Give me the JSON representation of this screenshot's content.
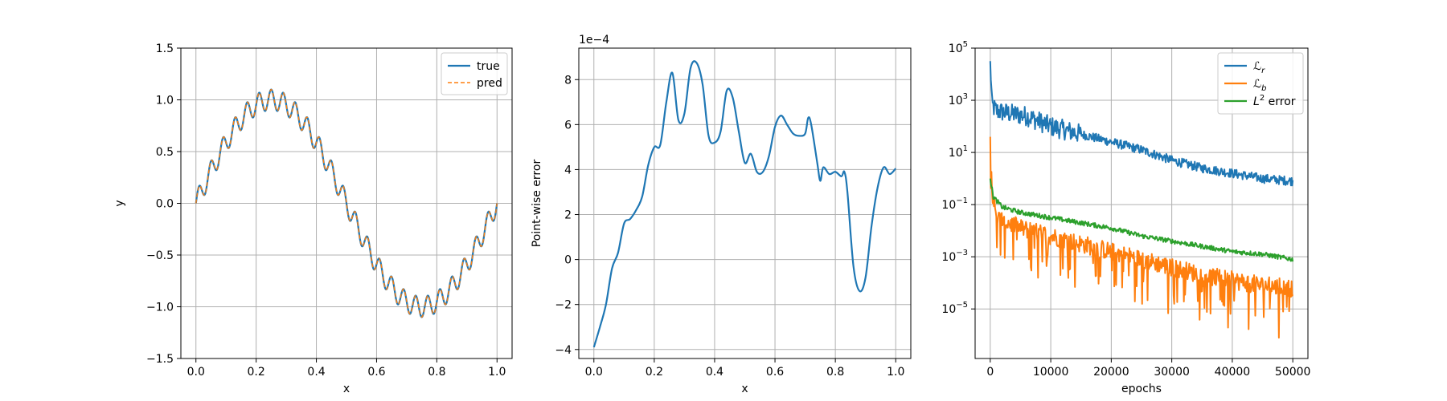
{
  "colors": {
    "blue": "#1f77b4",
    "orange": "#ff7f0e",
    "green": "#2ca02c",
    "grid": "#b0b0b0"
  },
  "chart_data": [
    {
      "type": "line",
      "title": "",
      "xlabel": "x",
      "ylabel": "y",
      "xlim": [
        -0.05,
        1.05
      ],
      "ylim": [
        -1.5,
        1.5
      ],
      "xticks": [
        0.0,
        0.2,
        0.4,
        0.6,
        0.8,
        1.0
      ],
      "xtick_labels": [
        "0.0",
        "0.2",
        "0.4",
        "0.6",
        "0.8",
        "1.0"
      ],
      "yticks": [
        -1.5,
        -1.0,
        -0.5,
        0.0,
        0.5,
        1.0,
        1.5
      ],
      "ytick_labels": [
        "−1.5",
        "−1.0",
        "−0.5",
        "0.0",
        "0.5",
        "1.0",
        "1.5"
      ],
      "grid": true,
      "legend_placement": "top-right",
      "function": "sin(2*pi*x) + 0.1*sin(50*pi*x)",
      "x_range": [
        0,
        1
      ],
      "series": [
        {
          "name": "true",
          "color": "#1f77b4",
          "style": "solid"
        },
        {
          "name": "pred",
          "color": "#ff7f0e",
          "style": "dashed"
        }
      ]
    },
    {
      "type": "line",
      "title": "",
      "xlabel": "x",
      "ylabel": "Point-wise error",
      "offset_text": "1e−4",
      "xlim": [
        -0.05,
        1.05
      ],
      "ylim": [
        -4.4,
        9.4
      ],
      "xticks": [
        0.0,
        0.2,
        0.4,
        0.6,
        0.8,
        1.0
      ],
      "xtick_labels": [
        "0.0",
        "0.2",
        "0.4",
        "0.6",
        "0.8",
        "1.0"
      ],
      "yticks": [
        -4,
        -2,
        0,
        2,
        4,
        6,
        8
      ],
      "ytick_labels": [
        "−4",
        "−2",
        "0",
        "2",
        "4",
        "6",
        "8"
      ],
      "grid": true,
      "series": [
        {
          "color": "#1f77b4",
          "points": [
            [
              0.0,
              -3.9
            ],
            [
              0.02,
              -3.0
            ],
            [
              0.04,
              -2.0
            ],
            [
              0.06,
              -0.4
            ],
            [
              0.08,
              0.3
            ],
            [
              0.1,
              1.6
            ],
            [
              0.12,
              1.8
            ],
            [
              0.14,
              2.2
            ],
            [
              0.16,
              2.8
            ],
            [
              0.18,
              4.2
            ],
            [
              0.2,
              5.0
            ],
            [
              0.22,
              5.1
            ],
            [
              0.24,
              7.0
            ],
            [
              0.26,
              8.3
            ],
            [
              0.28,
              6.2
            ],
            [
              0.3,
              6.5
            ],
            [
              0.32,
              8.5
            ],
            [
              0.34,
              8.75
            ],
            [
              0.36,
              7.8
            ],
            [
              0.38,
              5.5
            ],
            [
              0.4,
              5.2
            ],
            [
              0.42,
              5.7
            ],
            [
              0.44,
              7.5
            ],
            [
              0.46,
              7.2
            ],
            [
              0.48,
              5.7
            ],
            [
              0.5,
              4.3
            ],
            [
              0.52,
              4.7
            ],
            [
              0.54,
              3.9
            ],
            [
              0.56,
              3.9
            ],
            [
              0.58,
              4.6
            ],
            [
              0.6,
              5.9
            ],
            [
              0.62,
              6.4
            ],
            [
              0.64,
              6.0
            ],
            [
              0.66,
              5.6
            ],
            [
              0.68,
              5.5
            ],
            [
              0.7,
              5.6
            ],
            [
              0.71,
              6.3
            ],
            [
              0.72,
              6.0
            ],
            [
              0.74,
              4.3
            ],
            [
              0.75,
              3.5
            ],
            [
              0.76,
              4.1
            ],
            [
              0.78,
              3.8
            ],
            [
              0.8,
              3.9
            ],
            [
              0.82,
              3.7
            ],
            [
              0.83,
              3.9
            ],
            [
              0.84,
              3.0
            ],
            [
              0.86,
              -0.3
            ],
            [
              0.88,
              -1.4
            ],
            [
              0.9,
              -0.8
            ],
            [
              0.92,
              1.5
            ],
            [
              0.94,
              3.2
            ],
            [
              0.96,
              4.1
            ],
            [
              0.98,
              3.8
            ],
            [
              1.0,
              4.05
            ]
          ]
        }
      ]
    },
    {
      "type": "line",
      "title": "",
      "xlabel": "epochs",
      "ylabel": "",
      "yscale": "log",
      "xlim": [
        -2500,
        52500
      ],
      "ylim_log10": [
        -6.9,
        5.0
      ],
      "xticks": [
        0,
        10000,
        20000,
        30000,
        40000,
        50000
      ],
      "xtick_labels": [
        "0",
        "10000",
        "20000",
        "30000",
        "40000",
        "50000"
      ],
      "yticks_log10": [
        -5,
        -3,
        -1,
        1,
        3,
        5
      ],
      "ytick_labels": [
        [
          "10",
          "−5"
        ],
        [
          "10",
          "−3"
        ],
        [
          "10",
          "−1"
        ],
        [
          "10",
          "1"
        ],
        [
          "10",
          "3"
        ],
        [
          "10",
          "5"
        ]
      ],
      "grid": true,
      "legend_placement": "top-right",
      "series": [
        {
          "name": [
            "ℒ",
            "r"
          ],
          "color": "#1f77b4",
          "anchors_log10": [
            [
              0,
              4.5
            ],
            [
              300,
              2.8
            ],
            [
              1000,
              2.6
            ],
            [
              3000,
              2.5
            ],
            [
              6000,
              2.4
            ],
            [
              10000,
              2.0
            ],
            [
              15000,
              1.7
            ],
            [
              20000,
              1.4
            ],
            [
              25000,
              1.1
            ],
            [
              30000,
              0.7
            ],
            [
              35000,
              0.4
            ],
            [
              40000,
              0.2
            ],
            [
              45000,
              0.0
            ],
            [
              50000,
              -0.1
            ]
          ],
          "noise_log10": 0.35
        },
        {
          "name": [
            "ℒ",
            "b"
          ],
          "color": "#ff7f0e",
          "anchors_log10": [
            [
              0,
              1.6
            ],
            [
              300,
              -0.5
            ],
            [
              1000,
              -1.5
            ],
            [
              5000,
              -1.9
            ],
            [
              10000,
              -2.2
            ],
            [
              15000,
              -2.5
            ],
            [
              20000,
              -2.8
            ],
            [
              25000,
              -3.1
            ],
            [
              30000,
              -3.4
            ],
            [
              35000,
              -3.7
            ],
            [
              40000,
              -3.9
            ],
            [
              45000,
              -4.1
            ],
            [
              50000,
              -4.2
            ]
          ],
          "noise_log10": 0.7
        },
        {
          "name": [
            "L",
            "2",
            " error"
          ],
          "color": "#2ca02c",
          "anchors_log10": [
            [
              0,
              0.0
            ],
            [
              500,
              -0.7
            ],
            [
              2000,
              -1.1
            ],
            [
              5000,
              -1.3
            ],
            [
              10000,
              -1.5
            ],
            [
              15000,
              -1.7
            ],
            [
              20000,
              -1.9
            ],
            [
              25000,
              -2.2
            ],
            [
              30000,
              -2.4
            ],
            [
              35000,
              -2.6
            ],
            [
              40000,
              -2.8
            ],
            [
              45000,
              -2.9
            ],
            [
              50000,
              -3.1
            ]
          ],
          "noise_log10": 0.18
        }
      ]
    }
  ]
}
